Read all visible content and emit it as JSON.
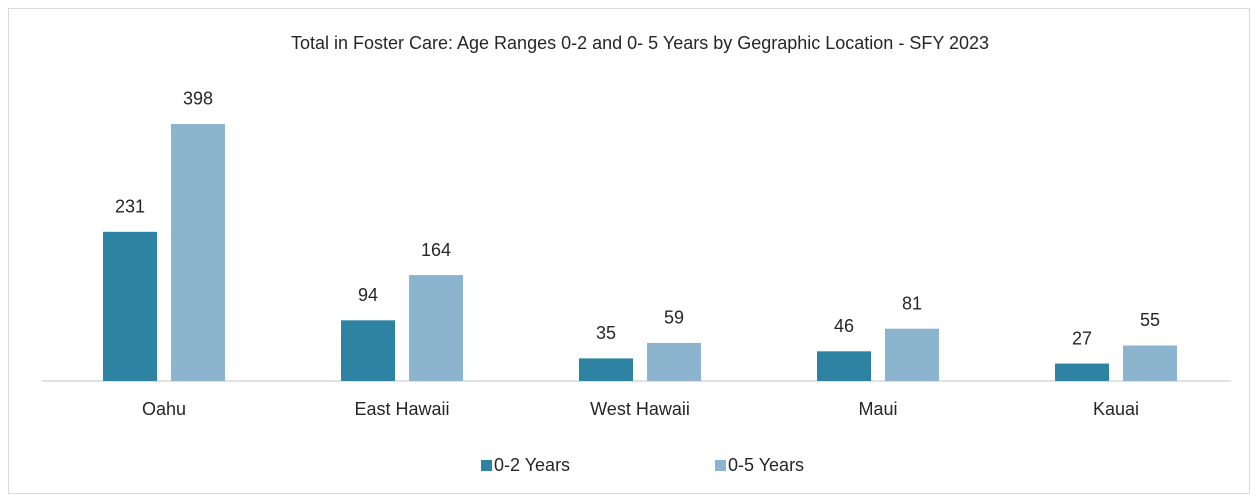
{
  "chart_data": {
    "type": "bar",
    "title": "Total in Foster Care: Age Ranges 0-2 and 0- 5 Years by Gegraphic Location - SFY 2023",
    "categories": [
      "Oahu",
      "East Hawaii",
      "West Hawaii",
      "Maui",
      "Kauai"
    ],
    "series": [
      {
        "name": "0-2 Years",
        "color": "#2e83a3",
        "values": [
          231,
          94,
          35,
          46,
          27
        ]
      },
      {
        "name": "0-5 Years",
        "color": "#8db4cf",
        "values": [
          398,
          164,
          59,
          81,
          55
        ]
      }
    ],
    "ylim": [
      0,
      450
    ],
    "legend": "bottom"
  }
}
